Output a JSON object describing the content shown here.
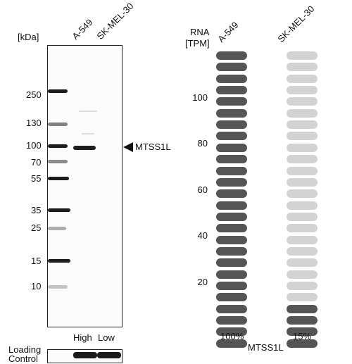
{
  "blot": {
    "kda_label": "[kDa]",
    "lane_labels": [
      "A-549",
      "SK-MEL-30"
    ],
    "markers": [
      "250",
      "130",
      "100",
      "70",
      "55",
      "35",
      "25",
      "15",
      "10"
    ],
    "target_label": "MTSS1L",
    "lane_expression": [
      "High",
      "Low"
    ],
    "loading_label_line1": "Loading",
    "loading_label_line2": "Control"
  },
  "rna": {
    "header_line1": "RNA",
    "header_line2": "[TPM]",
    "sample_labels": [
      "A-549",
      "SK-MEL-30"
    ],
    "axis_ticks": [
      "100",
      "80",
      "60",
      "40",
      "20"
    ],
    "percent_labels": [
      "100%",
      "15%"
    ],
    "gene_label": "MTSS1L",
    "pill_count": 26,
    "filled_counts": [
      26,
      4
    ],
    "colors": {
      "a549_filled": "#555555",
      "skmel_filled": "#555555",
      "empty": "#d3d3d3"
    }
  }
}
